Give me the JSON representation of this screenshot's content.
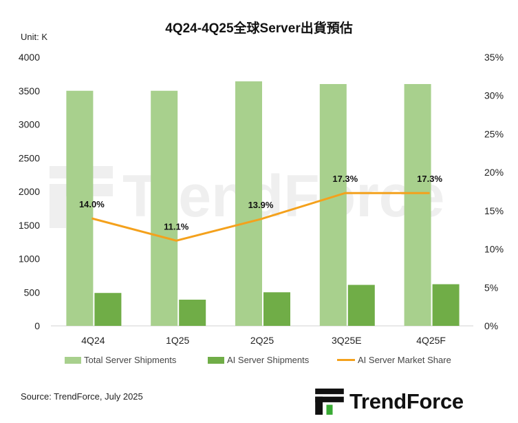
{
  "header": {
    "title": "4Q24-4Q25全球Server出貨預估",
    "unit": "Unit: K"
  },
  "footer": {
    "source": "Source: TrendForce, July 2025",
    "brand": "TrendForce"
  },
  "watermark": {
    "text": "TrendForce"
  },
  "colors": {
    "total": "#a8d08d",
    "ai": "#70ad47",
    "share": "#f4a11c"
  },
  "chart_data": {
    "type": "bar",
    "categories": [
      "4Q24",
      "1Q25",
      "2Q25",
      "3Q25E",
      "4Q25F"
    ],
    "series": [
      {
        "name": "Total Server Shipments",
        "type": "bar",
        "axis": "left",
        "values": [
          3500,
          3500,
          3640,
          3600,
          3600
        ]
      },
      {
        "name": "AI Server Shipments",
        "type": "bar",
        "axis": "left",
        "values": [
          490,
          390,
          500,
          610,
          620
        ]
      },
      {
        "name": "AI Server Market Share",
        "type": "line",
        "axis": "right",
        "values": [
          14.0,
          11.1,
          13.9,
          17.3,
          17.3
        ],
        "labels": [
          "14.0%",
          "11.1%",
          "13.9%",
          "17.3%",
          "17.3%"
        ]
      }
    ],
    "y_left": {
      "ylim": [
        0,
        4000
      ],
      "ticks": [
        "0",
        "500",
        "1000",
        "1500",
        "2000",
        "2500",
        "3000",
        "3500",
        "4000"
      ]
    },
    "y_right": {
      "ylim": [
        0,
        35
      ],
      "ticks": [
        "0%",
        "5%",
        "10%",
        "15%",
        "20%",
        "25%",
        "30%",
        "35%"
      ]
    },
    "grid": false,
    "legend": "bottom"
  }
}
